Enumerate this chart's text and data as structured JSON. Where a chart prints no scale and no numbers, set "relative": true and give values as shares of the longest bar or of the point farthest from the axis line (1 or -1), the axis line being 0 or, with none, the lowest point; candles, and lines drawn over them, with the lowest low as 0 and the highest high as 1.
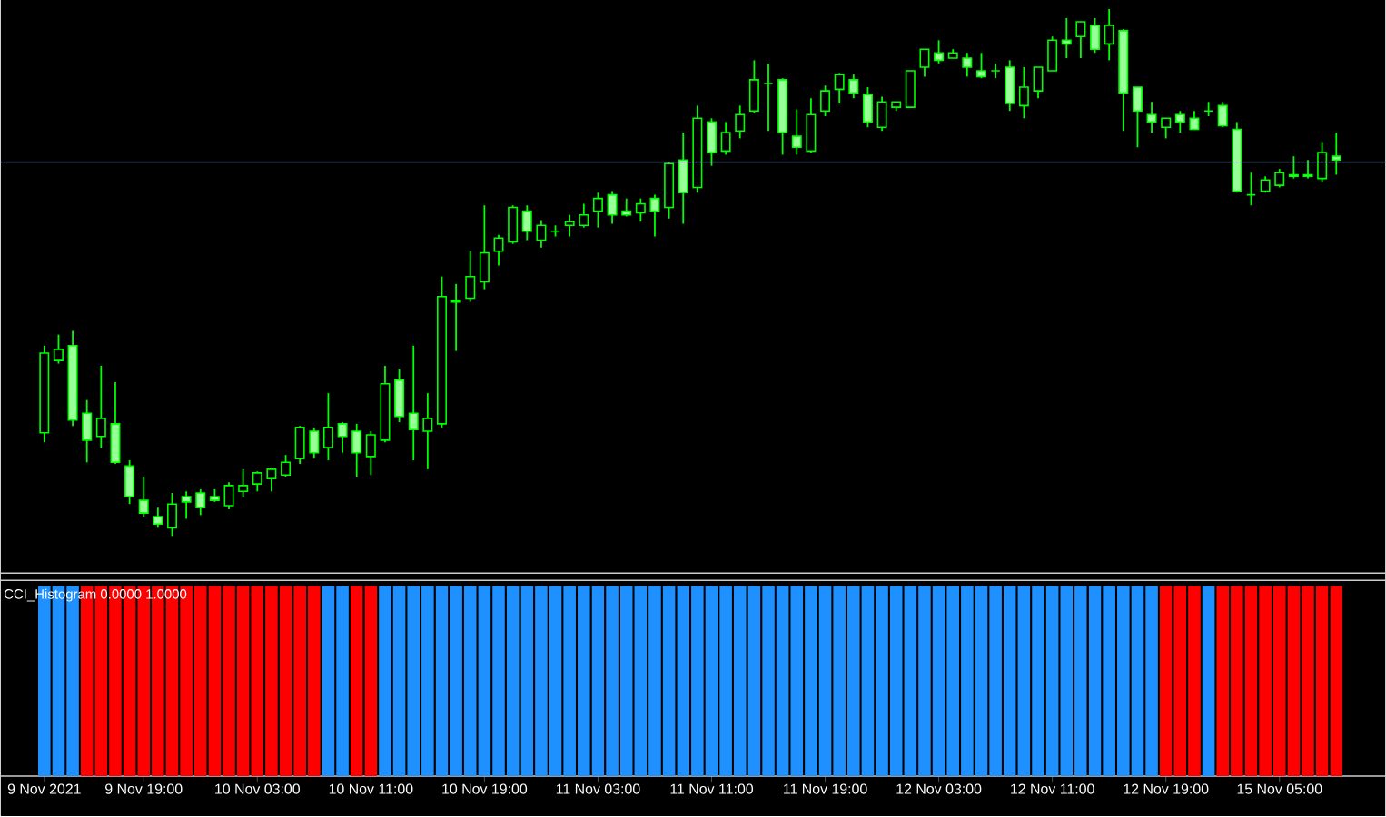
{
  "chart_data": [
    {
      "type": "candlestick",
      "relative": true,
      "color": "#00ff00",
      "categories": [
        null,
        null,
        null,
        null,
        null,
        null,
        null,
        null,
        null,
        null,
        null,
        null,
        null,
        null,
        null,
        null,
        null,
        null,
        null,
        null,
        null,
        null,
        null,
        null,
        null,
        null,
        null,
        null,
        null,
        null,
        null,
        null,
        null,
        null,
        null,
        null,
        null,
        null,
        null,
        null,
        null,
        null,
        null,
        null,
        null,
        null,
        null,
        null,
        null,
        null,
        null,
        null,
        null,
        null,
        null,
        null,
        null,
        null,
        null,
        null,
        null,
        null,
        null,
        null,
        null,
        null,
        null,
        null,
        null,
        null,
        null,
        null,
        null,
        null,
        null,
        null,
        null,
        null,
        null,
        null,
        null,
        null,
        null,
        null,
        null,
        null,
        null,
        null,
        null,
        null,
        null,
        null
      ],
      "ohlc": [
        [
          0.197,
          0.362,
          0.179,
          0.348
        ],
        [
          0.334,
          0.383,
          0.328,
          0.355
        ],
        [
          0.362,
          0.39,
          0.21,
          0.221
        ],
        [
          0.234,
          0.259,
          0.141,
          0.183
        ],
        [
          0.19,
          0.324,
          0.169,
          0.224
        ],
        [
          0.214,
          0.293,
          0.138,
          0.141
        ],
        [
          0.134,
          0.145,
          0.062,
          0.076
        ],
        [
          0.069,
          0.114,
          0.038,
          0.045
        ],
        [
          0.038,
          0.055,
          0.017,
          0.024
        ],
        [
          0.017,
          0.083,
          0.0,
          0.062
        ],
        [
          0.076,
          0.086,
          0.034,
          0.066
        ],
        [
          0.083,
          0.09,
          0.041,
          0.055
        ],
        [
          0.076,
          0.09,
          0.066,
          0.069
        ],
        [
          0.059,
          0.103,
          0.052,
          0.097
        ],
        [
          0.086,
          0.128,
          0.076,
          0.097
        ],
        [
          0.1,
          0.124,
          0.086,
          0.121
        ],
        [
          0.11,
          0.131,
          0.086,
          0.128
        ],
        [
          0.117,
          0.155,
          0.114,
          0.141
        ],
        [
          0.148,
          0.21,
          0.138,
          0.207
        ],
        [
          0.2,
          0.207,
          0.148,
          0.159
        ],
        [
          0.169,
          0.272,
          0.145,
          0.207
        ],
        [
          0.214,
          0.217,
          0.159,
          0.19
        ],
        [
          0.2,
          0.214,
          0.114,
          0.159
        ],
        [
          0.152,
          0.2,
          0.117,
          0.193
        ],
        [
          0.183,
          0.324,
          0.179,
          0.29
        ],
        [
          0.297,
          0.317,
          0.217,
          0.228
        ],
        [
          0.234,
          0.362,
          0.145,
          0.203
        ],
        [
          0.2,
          0.272,
          0.128,
          0.224
        ],
        [
          0.214,
          0.493,
          0.207,
          0.455
        ],
        [
          0.445,
          0.479,
          0.352,
          0.448
        ],
        [
          0.452,
          0.541,
          0.445,
          0.493
        ],
        [
          0.483,
          0.628,
          0.469,
          0.538
        ],
        [
          0.541,
          0.572,
          0.514,
          0.566
        ],
        [
          0.559,
          0.628,
          0.555,
          0.624
        ],
        [
          0.617,
          0.628,
          0.562,
          0.579
        ],
        [
          0.562,
          0.6,
          0.548,
          0.59
        ],
        [
          0.579,
          0.59,
          0.569,
          0.579
        ],
        [
          0.59,
          0.61,
          0.569,
          0.597
        ],
        [
          0.59,
          0.631,
          0.586,
          0.61
        ],
        [
          0.617,
          0.652,
          0.586,
          0.641
        ],
        [
          0.648,
          0.655,
          0.593,
          0.61
        ],
        [
          0.617,
          0.641,
          0.607,
          0.61
        ],
        [
          0.614,
          0.641,
          0.597,
          0.631
        ],
        [
          0.641,
          0.648,
          0.569,
          0.617
        ],
        [
          0.624,
          0.71,
          0.603,
          0.707
        ],
        [
          0.714,
          0.766,
          0.593,
          0.652
        ],
        [
          0.662,
          0.817,
          0.652,
          0.793
        ],
        [
          0.786,
          0.793,
          0.703,
          0.728
        ],
        [
          0.731,
          0.786,
          0.724,
          0.766
        ],
        [
          0.769,
          0.817,
          0.755,
          0.8
        ],
        [
          0.807,
          0.903,
          0.803,
          0.866
        ],
        [
          0.859,
          0.897,
          0.769,
          0.859
        ],
        [
          0.866,
          0.869,
          0.724,
          0.766
        ],
        [
          0.759,
          0.81,
          0.724,
          0.738
        ],
        [
          0.731,
          0.831,
          0.728,
          0.8
        ],
        [
          0.807,
          0.855,
          0.797,
          0.845
        ],
        [
          0.848,
          0.879,
          0.821,
          0.876
        ],
        [
          0.866,
          0.876,
          0.831,
          0.841
        ],
        [
          0.838,
          0.852,
          0.776,
          0.786
        ],
        [
          0.776,
          0.834,
          0.769,
          0.824
        ],
        [
          0.814,
          0.824,
          0.807,
          0.824
        ],
        [
          0.814,
          0.883,
          0.814,
          0.883
        ],
        [
          0.89,
          0.924,
          0.872,
          0.924
        ],
        [
          0.917,
          0.941,
          0.897,
          0.903
        ],
        [
          0.907,
          0.924,
          0.907,
          0.917
        ],
        [
          0.907,
          0.917,
          0.872,
          0.89
        ],
        [
          0.883,
          0.917,
          0.869,
          0.872
        ],
        [
          0.883,
          0.897,
          0.869,
          0.883
        ],
        [
          0.89,
          0.903,
          0.807,
          0.821
        ],
        [
          0.817,
          0.89,
          0.793,
          0.852
        ],
        [
          0.845,
          0.89,
          0.831,
          0.89
        ],
        [
          0.883,
          0.948,
          0.883,
          0.941
        ],
        [
          0.941,
          0.983,
          0.907,
          0.934
        ],
        [
          0.948,
          0.976,
          0.907,
          0.976
        ],
        [
          0.969,
          0.983,
          0.917,
          0.924
        ],
        [
          0.934,
          1.0,
          0.903,
          0.969
        ],
        [
          0.959,
          0.962,
          0.769,
          0.841
        ],
        [
          0.852,
          0.852,
          0.738,
          0.807
        ],
        [
          0.8,
          0.824,
          0.766,
          0.786
        ],
        [
          0.776,
          0.793,
          0.755,
          0.793
        ],
        [
          0.8,
          0.807,
          0.766,
          0.786
        ],
        [
          0.793,
          0.807,
          0.772,
          0.772
        ],
        [
          0.807,
          0.824,
          0.797,
          0.807
        ],
        [
          0.817,
          0.824,
          0.776,
          0.779
        ],
        [
          0.772,
          0.786,
          0.652,
          0.655
        ],
        [
          0.648,
          0.69,
          0.628,
          0.648
        ],
        [
          0.655,
          0.683,
          0.652,
          0.676
        ],
        [
          0.666,
          0.697,
          0.662,
          0.69
        ],
        [
          0.686,
          0.721,
          0.679,
          0.683
        ],
        [
          0.686,
          0.714,
          0.679,
          0.683
        ],
        [
          0.679,
          0.748,
          0.672,
          0.728
        ],
        [
          0.721,
          0.766,
          0.686,
          0.714
        ]
      ],
      "ref_lines": [
        {
          "axis": "y",
          "value": 0.71,
          "color": "#8fa0b8"
        }
      ]
    },
    {
      "type": "bar",
      "relative": true,
      "title": "CCI_Histogram 0.0000 1.0000",
      "categories": [
        "9 Nov 2021",
        null,
        null,
        null,
        null,
        null,
        null,
        "9 Nov 19:00",
        null,
        null,
        null,
        null,
        null,
        null,
        null,
        "10 Nov 03:00",
        null,
        null,
        null,
        null,
        null,
        null,
        null,
        "10 Nov 11:00",
        null,
        null,
        null,
        null,
        null,
        null,
        null,
        "10 Nov 19:00",
        null,
        null,
        null,
        null,
        null,
        null,
        null,
        "11 Nov 03:00",
        null,
        null,
        null,
        null,
        null,
        null,
        null,
        "11 Nov 11:00",
        null,
        null,
        null,
        null,
        null,
        null,
        null,
        "11 Nov 19:00",
        null,
        null,
        null,
        null,
        null,
        null,
        null,
        "12 Nov 03:00",
        null,
        null,
        null,
        null,
        null,
        null,
        null,
        "12 Nov 11:00",
        null,
        null,
        null,
        null,
        null,
        null,
        null,
        "12 Nov 19:00",
        null,
        null,
        null,
        null,
        null,
        null,
        null,
        "15 Nov 05:00",
        null,
        null,
        null,
        null
      ],
      "values": [
        1,
        1,
        1,
        1,
        1,
        1,
        1,
        1,
        1,
        1,
        1,
        1,
        1,
        1,
        1,
        1,
        1,
        1,
        1,
        1,
        1,
        1,
        1,
        1,
        1,
        1,
        1,
        1,
        1,
        1,
        1,
        1,
        1,
        1,
        1,
        1,
        1,
        1,
        1,
        1,
        1,
        1,
        1,
        1,
        1,
        1,
        1,
        1,
        1,
        1,
        1,
        1,
        1,
        1,
        1,
        1,
        1,
        1,
        1,
        1,
        1,
        1,
        1,
        1,
        1,
        1,
        1,
        1,
        1,
        1,
        1,
        1,
        1,
        1,
        1,
        1,
        1,
        1,
        1,
        1,
        1,
        1,
        1,
        1,
        1,
        1,
        1,
        1,
        1,
        1,
        1,
        1
      ],
      "colors": [
        "#1e90ff",
        "#1e90ff",
        "#1e90ff",
        "#ff0000",
        "#ff0000",
        "#ff0000",
        "#ff0000",
        "#ff0000",
        "#ff0000",
        "#ff0000",
        "#ff0000",
        "#ff0000",
        "#ff0000",
        "#ff0000",
        "#ff0000",
        "#ff0000",
        "#ff0000",
        "#ff0000",
        "#ff0000",
        "#ff0000",
        "#1e90ff",
        "#1e90ff",
        "#ff0000",
        "#ff0000",
        "#1e90ff",
        "#1e90ff",
        "#1e90ff",
        "#1e90ff",
        "#1e90ff",
        "#1e90ff",
        "#1e90ff",
        "#1e90ff",
        "#1e90ff",
        "#1e90ff",
        "#1e90ff",
        "#1e90ff",
        "#1e90ff",
        "#1e90ff",
        "#1e90ff",
        "#1e90ff",
        "#1e90ff",
        "#1e90ff",
        "#1e90ff",
        "#1e90ff",
        "#1e90ff",
        "#1e90ff",
        "#1e90ff",
        "#1e90ff",
        "#1e90ff",
        "#1e90ff",
        "#1e90ff",
        "#1e90ff",
        "#1e90ff",
        "#1e90ff",
        "#1e90ff",
        "#1e90ff",
        "#1e90ff",
        "#1e90ff",
        "#1e90ff",
        "#1e90ff",
        "#1e90ff",
        "#1e90ff",
        "#1e90ff",
        "#1e90ff",
        "#1e90ff",
        "#1e90ff",
        "#1e90ff",
        "#1e90ff",
        "#1e90ff",
        "#1e90ff",
        "#1e90ff",
        "#1e90ff",
        "#1e90ff",
        "#1e90ff",
        "#1e90ff",
        "#1e90ff",
        "#1e90ff",
        "#1e90ff",
        "#1e90ff",
        "#ff0000",
        "#ff0000",
        "#ff0000",
        "#1e90ff",
        "#ff0000",
        "#ff0000",
        "#ff0000",
        "#ff0000",
        "#ff0000",
        "#ff0000",
        "#ff0000",
        "#ff0000",
        "#ff0000"
      ]
    }
  ]
}
